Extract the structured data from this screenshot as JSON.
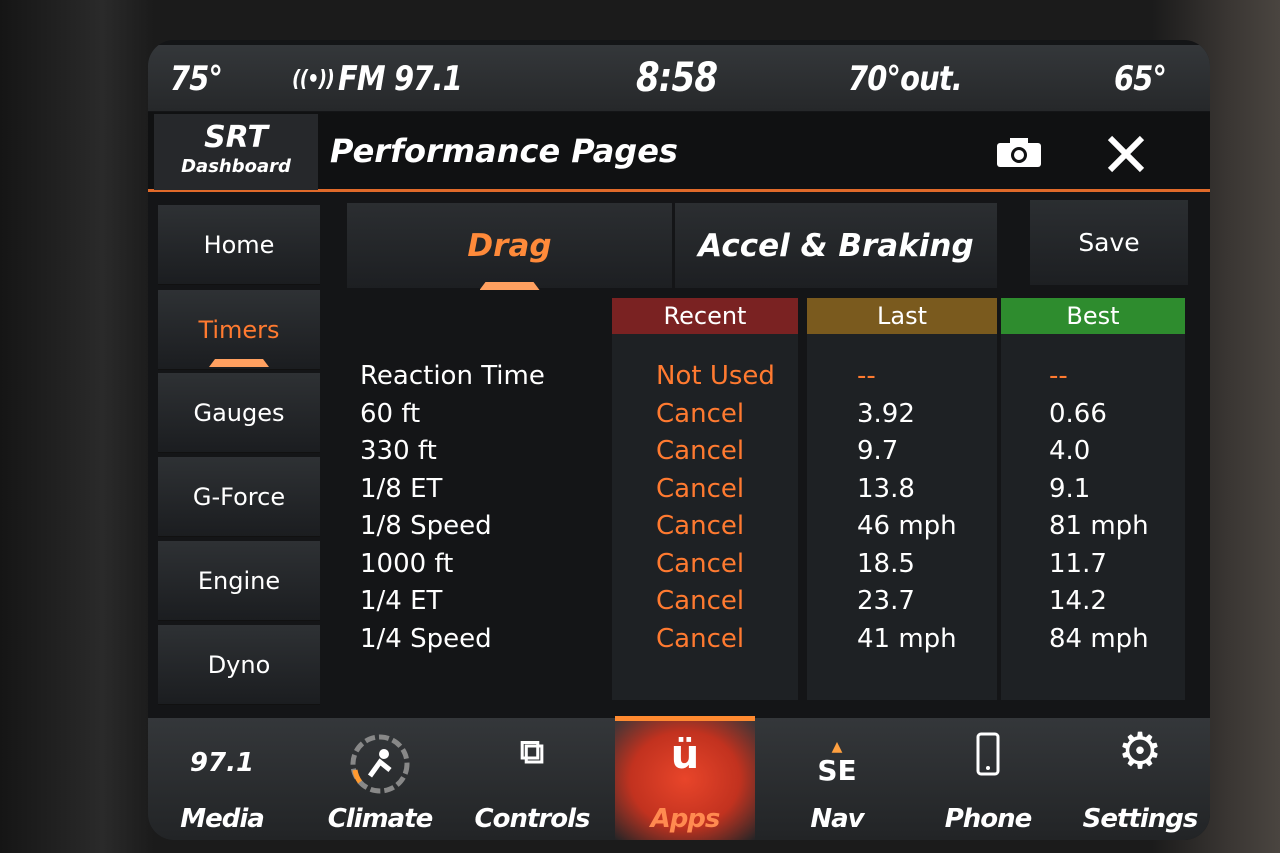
{
  "status": {
    "temp_left": "75°",
    "radio": "FM 97.1",
    "time": "8:58",
    "outside": "70°out.",
    "temp_right": "65°"
  },
  "header": {
    "logo_top": "SRT",
    "logo_bottom": "Dashboard",
    "title": "Performance Pages"
  },
  "sidebar": {
    "items": [
      {
        "label": "Home"
      },
      {
        "label": "Timers",
        "active": true
      },
      {
        "label": "Gauges"
      },
      {
        "label": "G-Force"
      },
      {
        "label": "Engine"
      },
      {
        "label": "Dyno"
      }
    ]
  },
  "tabs": [
    {
      "label": "Drag",
      "active": true
    },
    {
      "label": "Accel & Braking"
    }
  ],
  "save_label": "Save",
  "columns": {
    "recent": "Recent",
    "last": "Last",
    "best": "Best"
  },
  "colors": {
    "accent": "#ff7a30",
    "recent": "#7a2222",
    "last": "#7a5a1e",
    "best": "#2e8c2e"
  },
  "rows": [
    {
      "label": "Reaction Time",
      "recent": "Not Used",
      "last": "--",
      "best": "--"
    },
    {
      "label": "60 ft",
      "recent": "Cancel",
      "last": "3.92",
      "best": "0.66"
    },
    {
      "label": "330 ft",
      "recent": "Cancel",
      "last": "9.7",
      "best": "4.0"
    },
    {
      "label": "1/8 ET",
      "recent": "Cancel",
      "last": "13.8",
      "best": "9.1"
    },
    {
      "label": "1/8 Speed",
      "recent": "Cancel",
      "last": "46 mph",
      "best": "81 mph"
    },
    {
      "label": "1000 ft",
      "recent": "Cancel",
      "last": "18.5",
      "best": "11.7"
    },
    {
      "label": "1/4 ET",
      "recent": "Cancel",
      "last": "23.7",
      "best": "14.2"
    },
    {
      "label": "1/4 Speed",
      "recent": "Cancel",
      "last": "41 mph",
      "best": "84 mph"
    }
  ],
  "nav": {
    "media_value": "97.1",
    "compass": "SE",
    "items": [
      {
        "label": "Media"
      },
      {
        "label": "Climate"
      },
      {
        "label": "Controls"
      },
      {
        "label": "Apps",
        "active": true
      },
      {
        "label": "Nav"
      },
      {
        "label": "Phone"
      },
      {
        "label": "Settings"
      }
    ]
  }
}
